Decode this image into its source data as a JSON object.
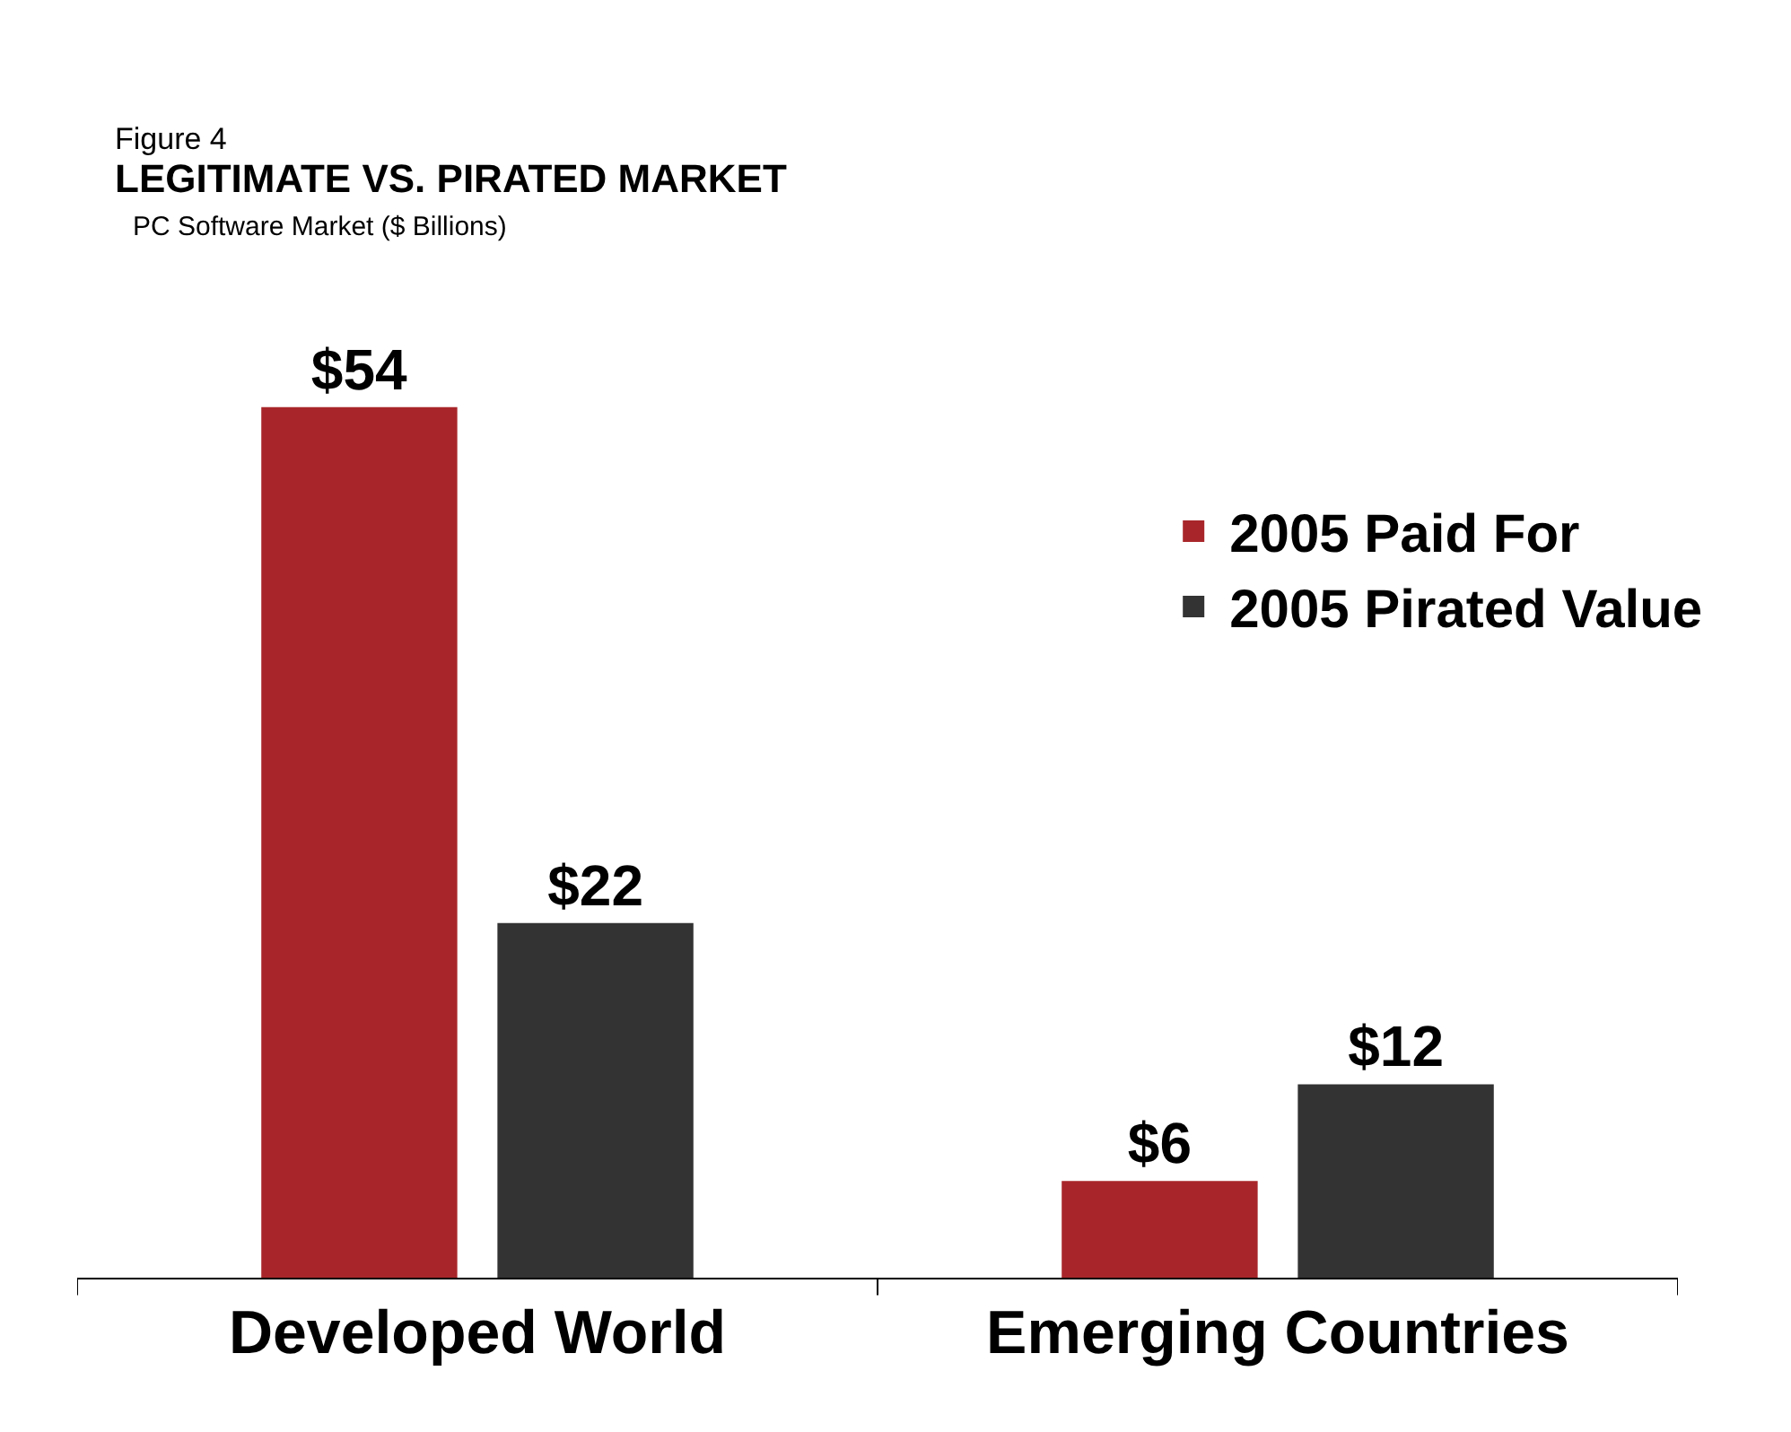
{
  "chart_data": {
    "type": "bar",
    "title": "LEGITIMATE VS. PIRATED MARKET",
    "subtitle": "PC Software Market ($ Billions)",
    "annotations": [
      "Figure 4"
    ],
    "categories": [
      "Developed World",
      "Emerging Countries"
    ],
    "series": [
      {
        "name": "2005 Paid For",
        "color": "#a8262a",
        "values": [
          54,
          6
        ],
        "value_labels": [
          "$54",
          "$6"
        ]
      },
      {
        "name": "2005 Pirated Value",
        "color": "#333333",
        "values": [
          22,
          12
        ],
        "value_labels": [
          "$22",
          "$12"
        ]
      }
    ],
    "legend": "top right",
    "tick_labels": "x"
  }
}
